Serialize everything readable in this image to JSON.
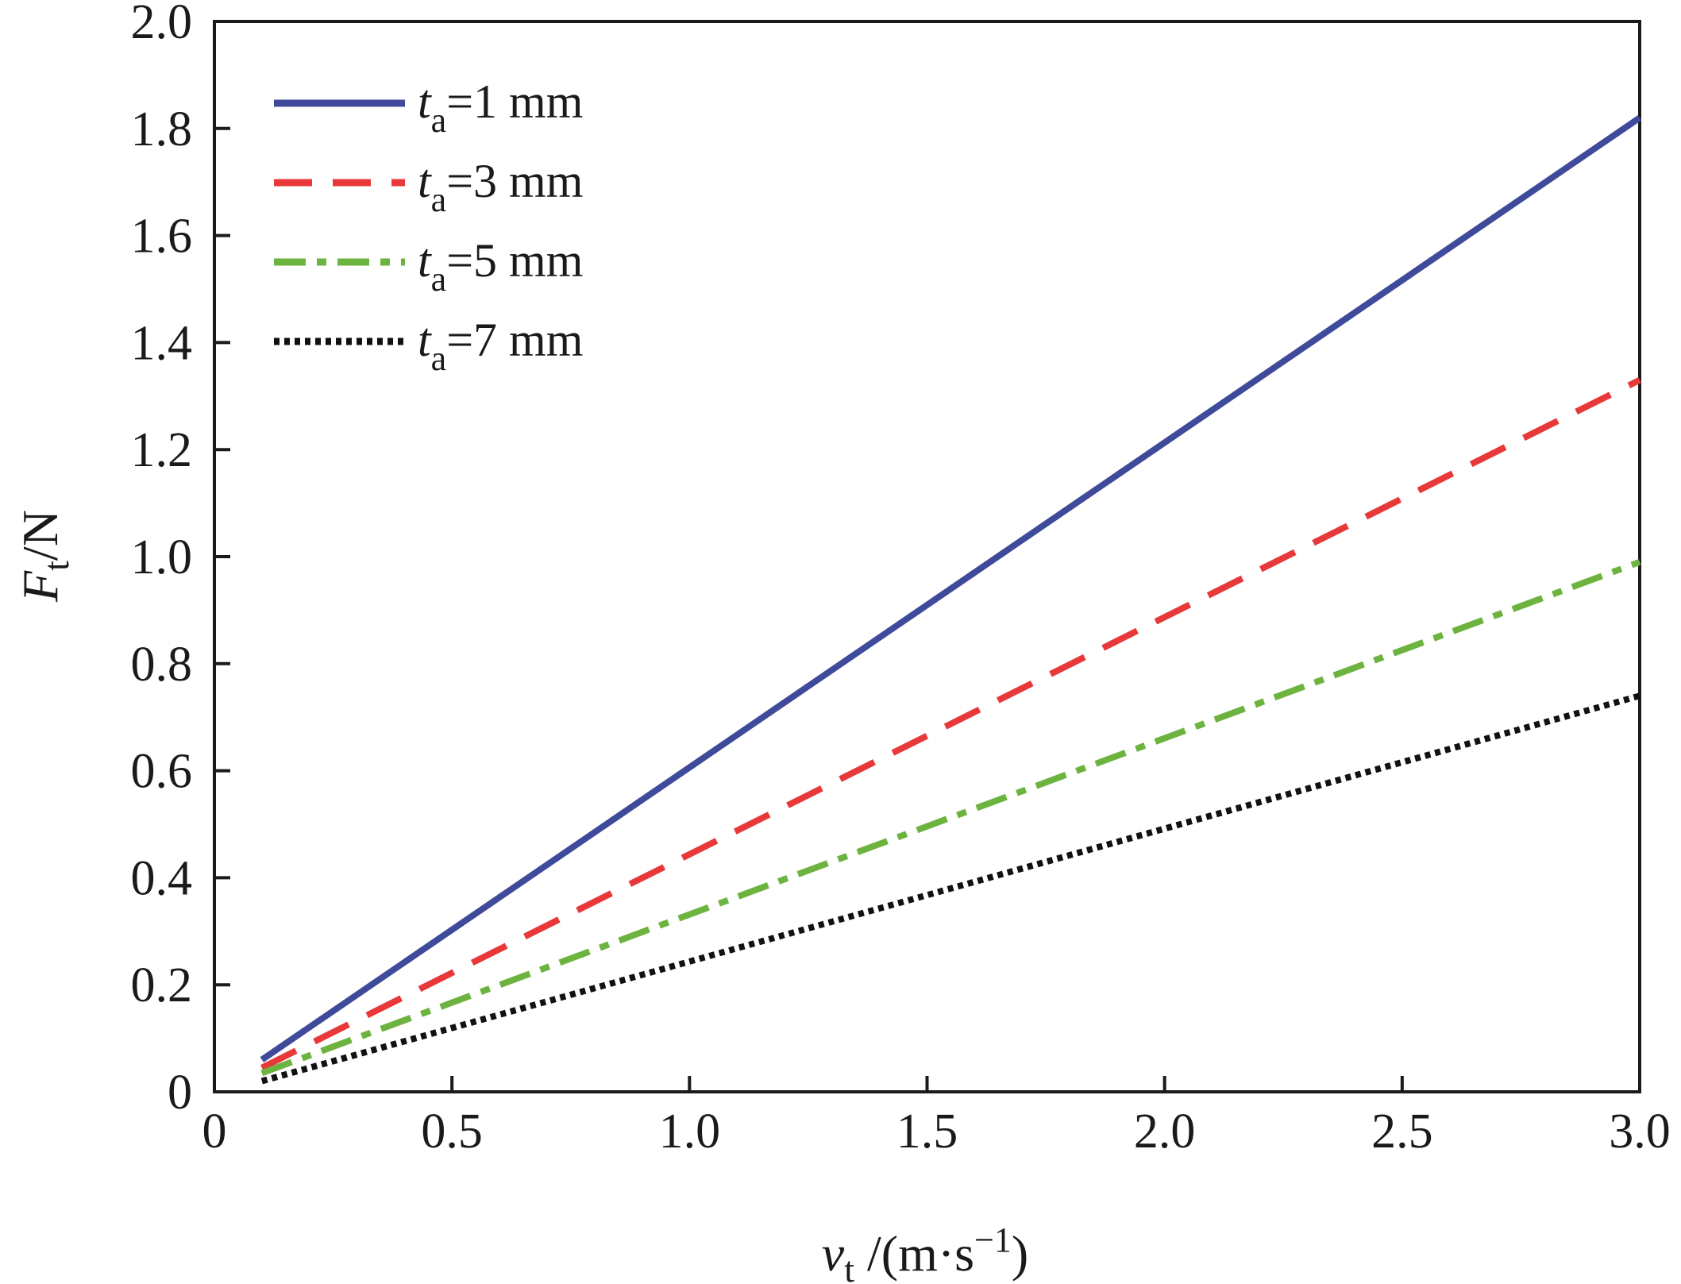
{
  "chart_data": {
    "type": "line",
    "xlabel": {
      "main": "v",
      "sub": "t",
      "unit_pre": " /(m·s",
      "sup": "−1",
      "unit_post": ")"
    },
    "ylabel": {
      "main": "F",
      "sub": "t",
      "unit": "/N"
    },
    "xlim": [
      0,
      3.0
    ],
    "ylim": [
      0,
      2.0
    ],
    "xticks": [
      0,
      0.5,
      1.0,
      1.5,
      2.0,
      2.5,
      3.0
    ],
    "xtick_labels": [
      "0",
      "0.5",
      "1.0",
      "1.5",
      "2.0",
      "2.5",
      "3.0"
    ],
    "yticks": [
      0,
      0.2,
      0.4,
      0.6,
      0.8,
      1.0,
      1.2,
      1.4,
      1.6,
      1.8,
      2.0
    ],
    "ytick_labels": [
      "0",
      "0.2",
      "0.4",
      "0.6",
      "0.8",
      "1.0",
      "1.2",
      "1.4",
      "1.6",
      "1.8",
      "2.0"
    ],
    "grid": false,
    "legend_position": "top-left",
    "series": [
      {
        "legend_var": "t",
        "legend_sub": "a",
        "legend_rest": "=1 mm",
        "color": "#3f4a9a",
        "style": "solid",
        "x": [
          0.1,
          3.0
        ],
        "y": [
          0.06,
          1.82
        ]
      },
      {
        "legend_var": "t",
        "legend_sub": "a",
        "legend_rest": "=3 mm",
        "color": "#e8383a",
        "style": "dashed",
        "x": [
          0.1,
          3.0
        ],
        "y": [
          0.045,
          1.33
        ]
      },
      {
        "legend_var": "t",
        "legend_sub": "a",
        "legend_rest": "=5 mm",
        "color": "#6cb33f",
        "style": "dashdot",
        "x": [
          0.1,
          3.0
        ],
        "y": [
          0.035,
          0.99
        ]
      },
      {
        "legend_var": "t",
        "legend_sub": "a",
        "legend_rest": "=7 mm",
        "color": "#111111",
        "style": "dotted",
        "x": [
          0.1,
          3.0
        ],
        "y": [
          0.02,
          0.74
        ]
      }
    ]
  }
}
